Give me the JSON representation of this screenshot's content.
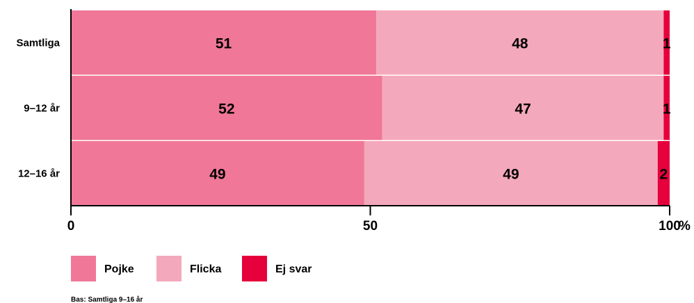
{
  "chart_data": {
    "type": "bar",
    "orientation": "horizontal",
    "stacked": true,
    "categories": [
      "Samtliga",
      "9–12 år",
      "12–16 år"
    ],
    "series": [
      {
        "name": "Pojke",
        "values": [
          51,
          52,
          49
        ],
        "color": "#f07797"
      },
      {
        "name": "Flicka",
        "values": [
          48,
          47,
          49
        ],
        "color": "#f4a8bb"
      },
      {
        "name": "Ej svar",
        "values": [
          1,
          1,
          2
        ],
        "color": "#e6003c"
      }
    ],
    "xlim": [
      0,
      100
    ],
    "xticks": [
      "0",
      "50",
      "100"
    ],
    "unit_label": "%",
    "legend_position": "bottom-left",
    "grid": false,
    "footnote": "Bas: Samtliga 9–16 år"
  }
}
